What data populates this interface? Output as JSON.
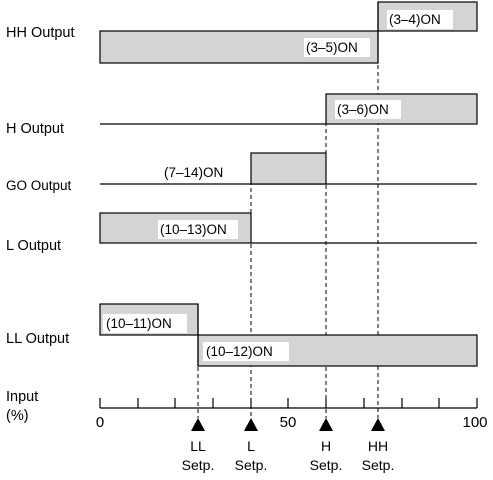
{
  "rows": [
    {
      "label": "HH Output",
      "bars": [
        {
          "text": "(3–4)ON"
        },
        {
          "text": "(3–5)ON"
        }
      ]
    },
    {
      "label": "H Output",
      "bars": [
        {
          "text": "(3–6)ON"
        }
      ]
    },
    {
      "label": "GO Output",
      "bars": [
        {
          "text": "(7–14)ON"
        }
      ]
    },
    {
      "label": "L Output",
      "bars": [
        {
          "text": "(10–13)ON"
        }
      ]
    },
    {
      "label": "LL Output",
      "bars": [
        {
          "text": "(10–11)ON"
        },
        {
          "text": "(10–12)ON"
        }
      ]
    }
  ],
  "axis": {
    "label_line1": "Input",
    "label_line2": "(%)",
    "ticks": [
      "0",
      "50",
      "100"
    ]
  },
  "setpoints": [
    {
      "name": "LL",
      "sub": "Setp."
    },
    {
      "name": "L",
      "sub": "Setp."
    },
    {
      "name": "H",
      "sub": "Setp."
    },
    {
      "name": "HH",
      "sub": "Setp."
    }
  ],
  "colors": {
    "bar_fill": "#d4d4d4",
    "line": "#000000"
  }
}
